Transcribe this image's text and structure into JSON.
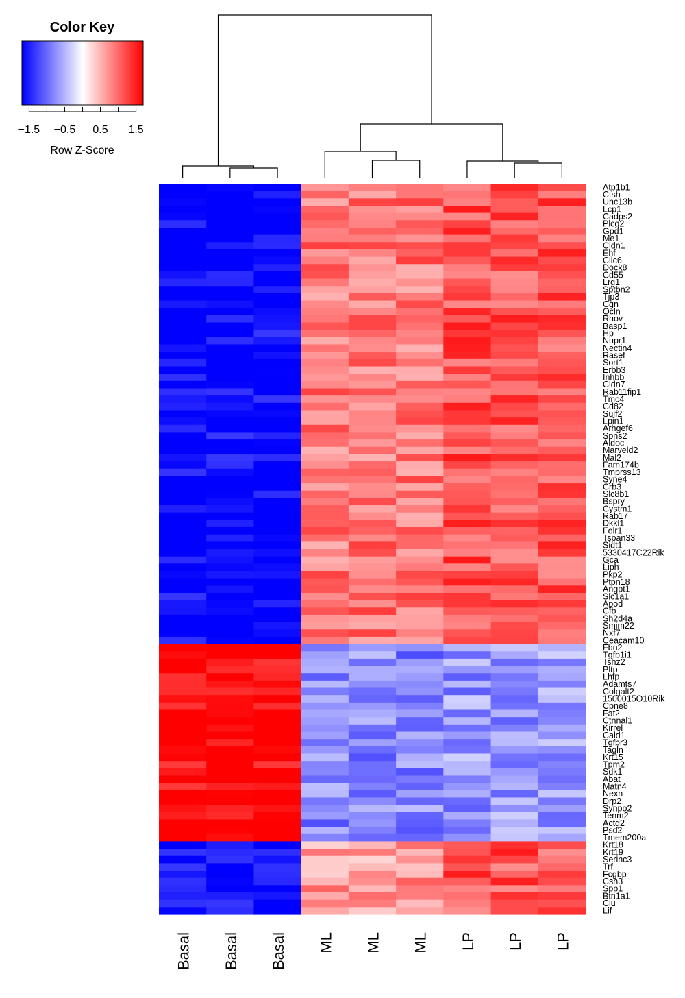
{
  "color_key": {
    "title": "Color Key",
    "ticks": [
      "-1.5",
      "-0.5",
      "0.5",
      "1.5"
    ],
    "label": "Row Z-Score",
    "colors": {
      "low": "#0000ff",
      "mid": "#ffffff",
      "high": "#ff0000"
    }
  },
  "chart_data": {
    "type": "heatmap",
    "columns": [
      "Basal",
      "Basal",
      "Basal",
      "ML",
      "ML",
      "ML",
      "LP",
      "LP",
      "LP"
    ],
    "zlim": [
      -1.5,
      1.5
    ],
    "row_labels_visible": [
      "Atp1b1",
      "Ctsh",
      "Unc13b",
      "Lcp1",
      "Cadps2",
      "Plcg2",
      "Gpd1",
      "Me1",
      "Cldn1",
      "Ehf",
      "Clic6",
      "Dock8",
      "Cd55",
      "Lrg1",
      "Sptbn2",
      "Tjp3",
      "Cgn",
      "Ocln",
      "Rhov",
      "Basp1",
      "Hp",
      "Nupr1",
      "Nectin4",
      "Rasef",
      "Sort1",
      "Erbb3",
      "Inhbb",
      "Cldn7",
      "Rab11fip1",
      "Tmc4",
      "Cd82",
      "Sulf2",
      "Lpin1",
      "Arhgef6",
      "Spns2",
      "Aldoc",
      "Marveld2",
      "Mal2",
      "Fam174b",
      "Tmprss13",
      "Syne4",
      "Crb3",
      "Slc8b1",
      "Bspry",
      "Cystm1",
      "Rab17",
      "Dkkl1",
      "Folr1",
      "Tspan33",
      "Sidt1",
      "5330417C22Rik",
      "Gca",
      "Liph",
      "Pkp2",
      "Ptpn18",
      "Angpt1",
      "Slc1a1",
      "Apod",
      "Cfb",
      "Sh2d4a",
      "Smim22",
      "Nxf7",
      "Ceacam10",
      "Fbn2",
      "Tgfb1i1",
      "Tshz2",
      "Pltp",
      "Lhfp",
      "Adamts7",
      "Colgalt2",
      "1500015O10Rik",
      "Cpne8",
      "Fat2",
      "Ctnnal1",
      "Kirrel",
      "Cald1",
      "Tgfbr3",
      "Tagln",
      "Krt15",
      "Tpm2",
      "Sdk1",
      "Abat",
      "Matn4",
      "Nexn",
      "Drp2",
      "Synpo2",
      "Tenm2",
      "Actg2",
      "Psd2",
      "Tmem200a",
      "Krt18",
      "Krt19",
      "Serinc3",
      "Trf",
      "Fcgbp",
      "Csn3",
      "Spp1",
      "Btn1a1",
      "Clu",
      "Lif"
    ],
    "block_row_counts": [
      63,
      27,
      10
    ],
    "block_pattern": [
      [
        -1.5,
        -1.5,
        -1.5,
        0.8,
        0.8,
        0.8,
        1.0,
        1.0,
        1.0
      ],
      [
        1.5,
        1.5,
        1.5,
        -0.7,
        -0.7,
        -0.7,
        -0.6,
        -0.6,
        -0.6
      ],
      [
        -1.5,
        -1.5,
        -1.5,
        0.6,
        0.6,
        0.6,
        1.0,
        1.0,
        1.0
      ]
    ]
  }
}
